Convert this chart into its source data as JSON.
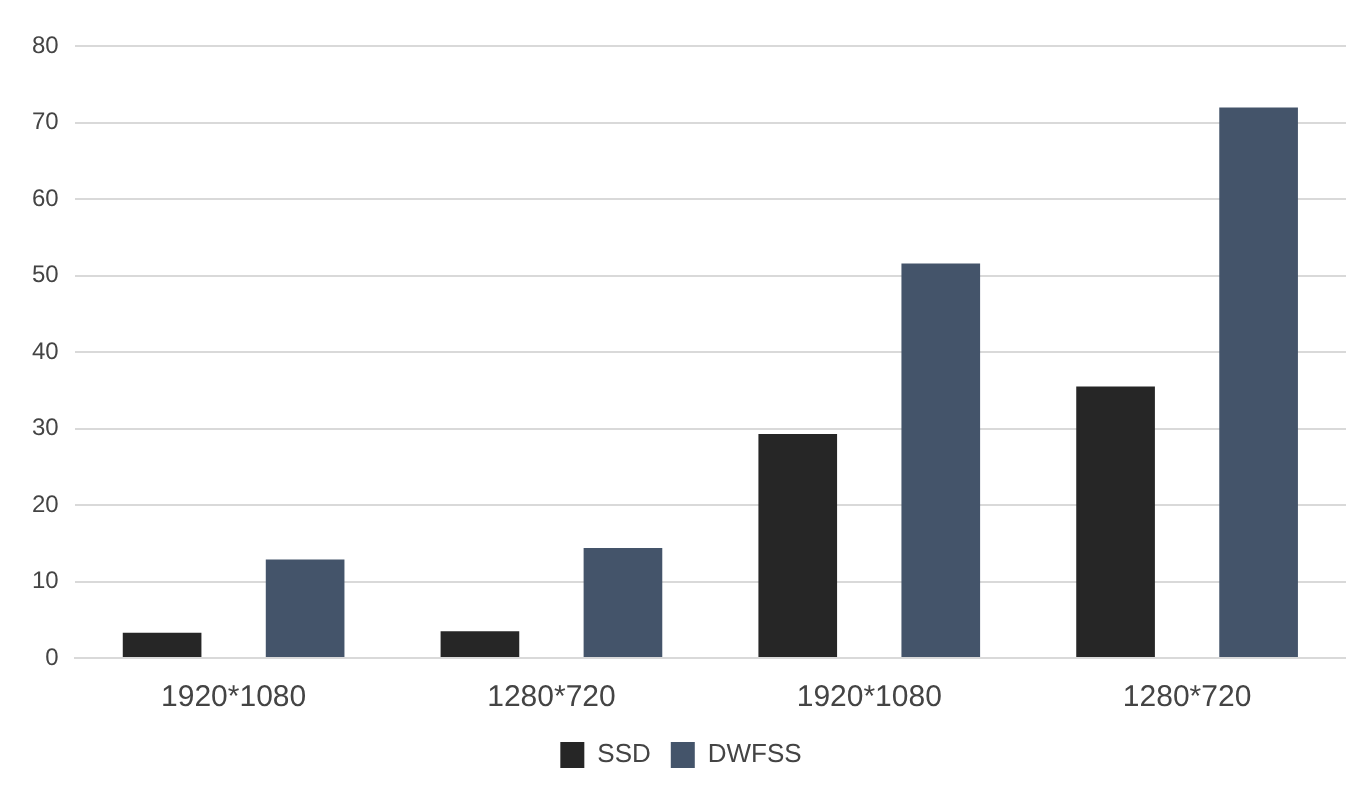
{
  "chart_data": {
    "type": "bar",
    "categories": [
      "1920*1080",
      "1280*720",
      "1920*1080",
      "1280*720"
    ],
    "series": [
      {
        "name": "SSD",
        "color": "#262626",
        "values": [
          3.3,
          3.5,
          29.3,
          35.5
        ]
      },
      {
        "name": "DWFSS",
        "color": "#44546a",
        "values": [
          12.9,
          14.4,
          51.6,
          72
        ]
      }
    ],
    "ylim": [
      0,
      80
    ],
    "yticks": [
      0,
      10,
      20,
      30,
      40,
      50,
      60,
      70,
      80
    ],
    "grid": "y",
    "legend": "bottom"
  }
}
